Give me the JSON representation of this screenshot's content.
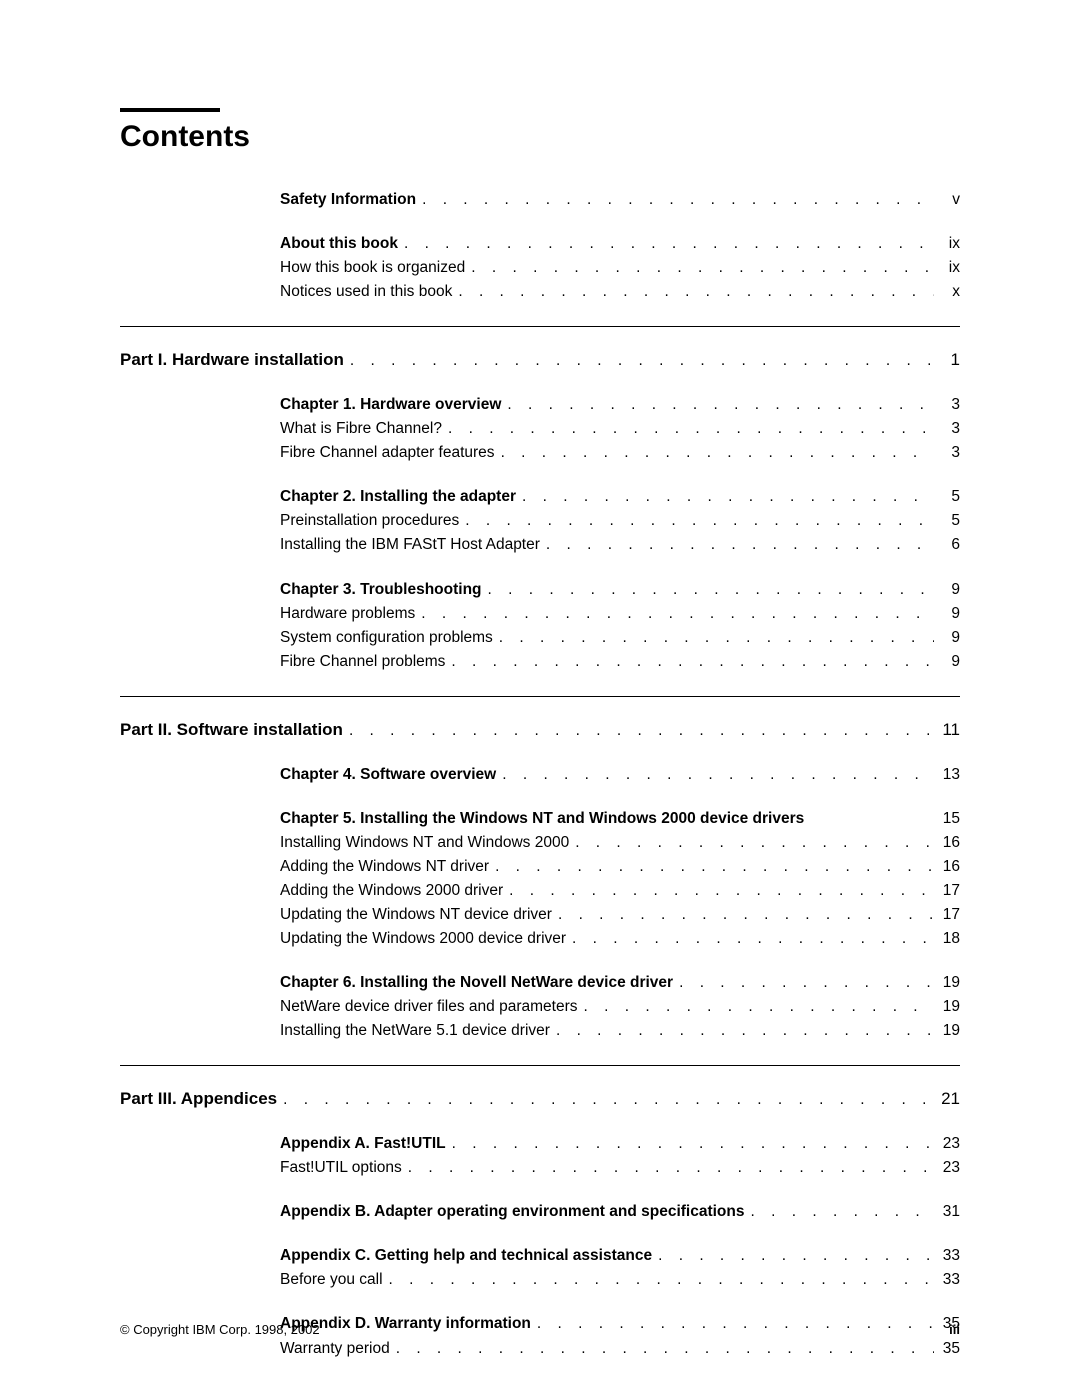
{
  "title": "Contents",
  "groups": [
    {
      "type": "block",
      "indent": true,
      "entries": [
        {
          "label": "Safety Information",
          "bold": true,
          "page": "v"
        }
      ]
    },
    {
      "type": "gap"
    },
    {
      "type": "block",
      "indent": true,
      "entries": [
        {
          "label": "About this book",
          "bold": true,
          "page": "ix"
        },
        {
          "label": "How this book is organized",
          "bold": false,
          "page": "ix"
        },
        {
          "label": "Notices used in this book",
          "bold": false,
          "page": "x"
        }
      ]
    },
    {
      "type": "hr"
    },
    {
      "type": "part",
      "label": "Part I. Hardware installation",
      "page": "1"
    },
    {
      "type": "gap"
    },
    {
      "type": "block",
      "indent": true,
      "entries": [
        {
          "label": "Chapter 1.  Hardware overview",
          "bold": true,
          "page": "3"
        },
        {
          "label": "What is Fibre Channel?",
          "bold": false,
          "page": "3"
        },
        {
          "label": "Fibre Channel adapter features",
          "bold": false,
          "page": "3"
        }
      ]
    },
    {
      "type": "gap"
    },
    {
      "type": "block",
      "indent": true,
      "entries": [
        {
          "label": "Chapter 2.  Installing the adapter",
          "bold": true,
          "page": "5"
        },
        {
          "label": "Preinstallation procedures",
          "bold": false,
          "page": "5"
        },
        {
          "label": "Installing the IBM FAStT Host Adapter",
          "bold": false,
          "page": "6"
        }
      ]
    },
    {
      "type": "gap"
    },
    {
      "type": "block",
      "indent": true,
      "entries": [
        {
          "label": "Chapter 3.  Troubleshooting",
          "bold": true,
          "page": "9"
        },
        {
          "label": "Hardware problems",
          "bold": false,
          "page": "9"
        },
        {
          "label": "System configuration problems",
          "bold": false,
          "page": "9"
        },
        {
          "label": "Fibre Channel problems",
          "bold": false,
          "page": "9"
        }
      ]
    },
    {
      "type": "hr"
    },
    {
      "type": "part",
      "label": "Part II. Software installation",
      "page": "11"
    },
    {
      "type": "gap"
    },
    {
      "type": "block",
      "indent": true,
      "entries": [
        {
          "label": "Chapter 4.  Software overview",
          "bold": true,
          "page": "13"
        }
      ]
    },
    {
      "type": "gap"
    },
    {
      "type": "block",
      "indent": true,
      "entries": [
        {
          "label": "Chapter 5.  Installing the Windows NT and Windows 2000 device drivers",
          "bold": true,
          "page": "15",
          "noLeader": true
        },
        {
          "label": "Installing Windows NT and Windows 2000",
          "bold": false,
          "page": "16"
        },
        {
          "label": "Adding the Windows NT driver",
          "bold": false,
          "page": "16"
        },
        {
          "label": "Adding the Windows 2000 driver",
          "bold": false,
          "page": "17"
        },
        {
          "label": "Updating the Windows NT device driver",
          "bold": false,
          "page": "17"
        },
        {
          "label": "Updating the Windows 2000 device driver",
          "bold": false,
          "page": "18"
        }
      ]
    },
    {
      "type": "gap"
    },
    {
      "type": "block",
      "indent": true,
      "entries": [
        {
          "label": "Chapter 6.  Installing the Novell NetWare device driver",
          "bold": true,
          "page": "19"
        },
        {
          "label": "NetWare device driver files and parameters",
          "bold": false,
          "page": "19"
        },
        {
          "label": "Installing the NetWare 5.1 device driver",
          "bold": false,
          "page": "19"
        }
      ]
    },
    {
      "type": "hr"
    },
    {
      "type": "part",
      "label": "Part III. Appendices",
      "page": "21"
    },
    {
      "type": "gap"
    },
    {
      "type": "block",
      "indent": true,
      "entries": [
        {
          "label": "Appendix A.  Fast!UTIL",
          "bold": true,
          "page": "23"
        },
        {
          "label": "Fast!UTIL options",
          "bold": false,
          "page": "23"
        }
      ]
    },
    {
      "type": "gap"
    },
    {
      "type": "block",
      "indent": true,
      "entries": [
        {
          "label": "Appendix B.  Adapter operating environment and specifications",
          "bold": true,
          "page": "31"
        }
      ]
    },
    {
      "type": "gap"
    },
    {
      "type": "block",
      "indent": true,
      "entries": [
        {
          "label": "Appendix C.  Getting help and technical assistance",
          "bold": true,
          "page": "33"
        },
        {
          "label": "Before you call",
          "bold": false,
          "page": "33"
        }
      ]
    },
    {
      "type": "gap"
    },
    {
      "type": "block",
      "indent": true,
      "entries": [
        {
          "label": "Appendix D.  Warranty information",
          "bold": true,
          "page": "35"
        },
        {
          "label": "Warranty period",
          "bold": false,
          "page": "35"
        }
      ]
    }
  ],
  "footer": {
    "copyright": "© Copyright IBM Corp. 1998, 2002",
    "pagenum": "iii"
  }
}
